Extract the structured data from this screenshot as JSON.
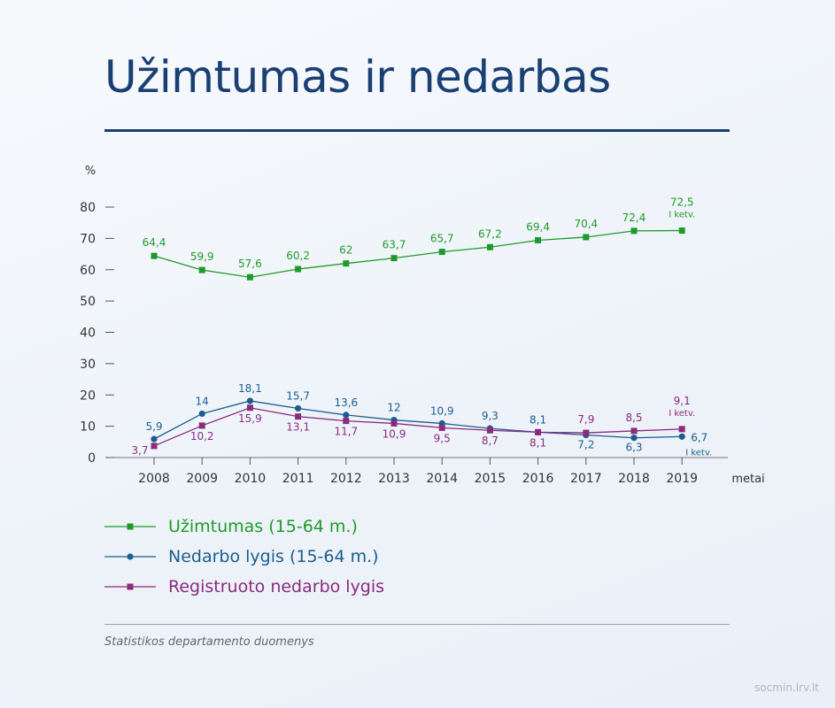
{
  "title": "Užimtumas ir nedarbas",
  "source": "Statistikos departamento duomenys",
  "site": "socmin.lrv.lt",
  "chart_data": {
    "type": "line",
    "ylabel": "%",
    "xlabel": "metai",
    "ylim": [
      0,
      80
    ],
    "yticks": [
      0,
      10,
      20,
      30,
      40,
      50,
      60,
      70,
      80
    ],
    "categories": [
      "2008",
      "2009",
      "2010",
      "2011",
      "2012",
      "2013",
      "2014",
      "2015",
      "2016",
      "2017",
      "2018",
      "2019"
    ],
    "grid": false,
    "legend_position": "bottom-left",
    "series": [
      {
        "name": "Užimtumas (15-64 m.)",
        "marker": "square",
        "color": "#1e9a2a",
        "values": [
          64.4,
          59.9,
          57.6,
          60.2,
          62,
          63.7,
          65.7,
          67.2,
          69.4,
          70.4,
          72.4,
          72.5
        ],
        "labels": [
          "64,4",
          "59,9",
          "57,6",
          "60,2",
          "62",
          "63,7",
          "65,7",
          "67,2",
          "69,4",
          "70,4",
          "72,4",
          "72,5"
        ],
        "last_note": "I ketv."
      },
      {
        "name": "Nedarbo lygis (15-64 m.)",
        "marker": "circle",
        "color": "#1c5d8f",
        "values": [
          5.9,
          14,
          18.1,
          15.7,
          13.6,
          12,
          10.9,
          9.3,
          8.1,
          7.2,
          6.3,
          6.7
        ],
        "labels": [
          "5,9",
          "14",
          "18,1",
          "15,7",
          "13,6",
          "12",
          "10,9",
          "9,3",
          "8,1",
          "7,2",
          "6,3",
          "6,7"
        ],
        "last_note": "I ketv."
      },
      {
        "name": "Registruoto nedarbo lygis",
        "marker": "square",
        "color": "#8a2b7d",
        "values": [
          3.7,
          10.2,
          15.9,
          13.1,
          11.7,
          10.9,
          9.5,
          8.7,
          8.1,
          7.9,
          8.5,
          9.1
        ],
        "labels": [
          "3,7",
          "10,2",
          "15,9",
          "13,1",
          "11,7",
          "10,9",
          "9,5",
          "8,7",
          "8,1",
          "7,9",
          "8,5",
          "9,1"
        ],
        "last_note": "I ketv."
      }
    ]
  }
}
